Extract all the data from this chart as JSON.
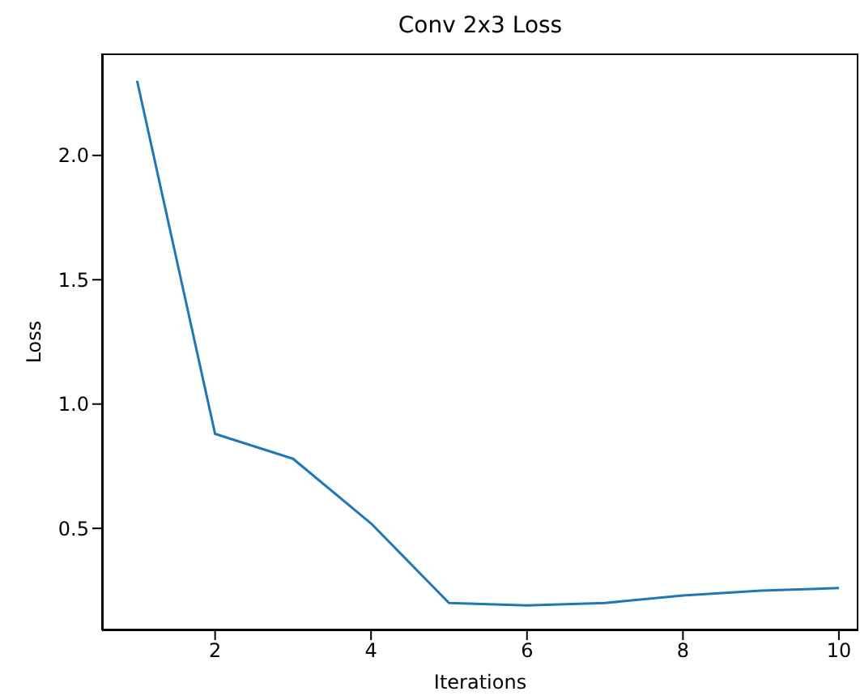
{
  "chart_data": {
    "type": "line",
    "title": "Conv 2x3 Loss",
    "xlabel": "Iterations",
    "ylabel": "Loss",
    "x": [
      1,
      2,
      3,
      4,
      5,
      6,
      7,
      8,
      9,
      10
    ],
    "series": [
      {
        "color": "#1f77b4",
        "values": [
          2.3,
          0.88,
          0.78,
          0.52,
          0.2,
          0.19,
          0.2,
          0.23,
          0.25,
          0.26
        ]
      }
    ],
    "xlim": [
      0.55,
      10.25
    ],
    "xticks": [
      2,
      4,
      6,
      8,
      10
    ],
    "ylim": [
      0.09,
      2.41
    ],
    "yticks": [
      {
        "value": 0.5,
        "label": "0.5"
      },
      {
        "value": 1,
        "label": "1.0"
      },
      {
        "value": 1.5,
        "label": "1.5"
      },
      {
        "value": 2,
        "label": "2.0"
      }
    ],
    "grid": false,
    "marker": "none",
    "line_style": "solid"
  }
}
